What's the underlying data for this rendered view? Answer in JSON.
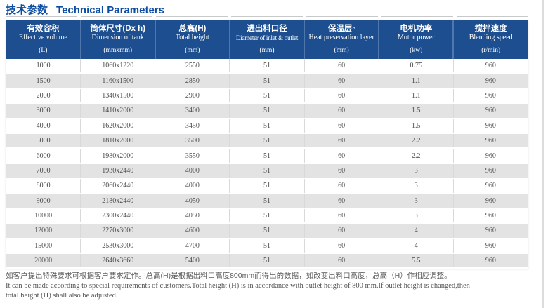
{
  "page": {
    "title_cn": "技术参数",
    "title_en": "Technical Parameters"
  },
  "colors": {
    "title_blue": "#0d4da1",
    "header_bg": "#1d4e8f",
    "header_divider": "#4f77ae",
    "row_stripe": "#e3e3e4",
    "body_text": "#4a4a4a",
    "note_text": "#5c5c5c",
    "table_border": "#c9c9c9"
  },
  "table": {
    "columns": [
      {
        "cn": "有效容积",
        "en": "Effective volume",
        "unit": "(L)"
      },
      {
        "cn": "筒体尺寸(Dx h)",
        "en": "Dimension of tank",
        "unit": "(mmxmm)"
      },
      {
        "cn": "总高(H)",
        "en": "Total height",
        "unit": "(mm)"
      },
      {
        "cn": "进出料口径",
        "en": "Diameter of inlet & outlet",
        "unit": "(mm)"
      },
      {
        "cn": "保温层▫",
        "en": "Heat preservation layer",
        "unit": "(mm)"
      },
      {
        "cn": "电机功率",
        "en": "Motor power",
        "unit": "(kw)"
      },
      {
        "cn": "搅拌速度",
        "en": "Blending speed",
        "unit": "(r/min)"
      }
    ],
    "rows": [
      [
        "1000",
        "1060x1220",
        "2550",
        "51",
        "60",
        "0.75",
        "960"
      ],
      [
        "1500",
        "1160x1500",
        "2850",
        "51",
        "60",
        "1.1",
        "960"
      ],
      [
        "2000",
        "1340x1500",
        "2900",
        "51",
        "60",
        "1.1",
        "960"
      ],
      [
        "3000",
        "1410x2000",
        "3400",
        "51",
        "60",
        "1.5",
        "960"
      ],
      [
        "4000",
        "1620x2000",
        "3450",
        "51",
        "60",
        "1.5",
        "960"
      ],
      [
        "5000",
        "1810x2000",
        "3500",
        "51",
        "60",
        "2.2",
        "960"
      ],
      [
        "6000",
        "1980x2000",
        "3550",
        "51",
        "60",
        "2.2",
        "960"
      ],
      [
        "7000",
        "1930x2440",
        "4000",
        "51",
        "60",
        "3",
        "960"
      ],
      [
        "8000",
        "2060x2440",
        "4000",
        "51",
        "60",
        "3",
        "960"
      ],
      [
        "9000",
        "2180x2440",
        "4050",
        "51",
        "60",
        "3",
        "960"
      ],
      [
        "10000",
        "2300x2440",
        "4050",
        "51",
        "60",
        "3",
        "960"
      ],
      [
        "12000",
        "2270x3000",
        "4600",
        "51",
        "60",
        "4",
        "960"
      ],
      [
        "15000",
        "2530x3000",
        "4700",
        "51",
        "60",
        "4",
        "960"
      ],
      [
        "20000",
        "2640x3660",
        "5400",
        "51",
        "60",
        "5.5",
        "960"
      ]
    ]
  },
  "notes": {
    "cn": "如客户提出特殊要求可根据客户要求定作。总高(H)是根据出料口高度800mm而得出的数据，如改变出料口高度，总高（H）作相应调整。",
    "en_line1": "It can be made according to special requirements of customers.Total height (H) is in accordance with outlet height of 800 mm.If outlet height is changed,then",
    "en_line2": "total height (H) shall also be adjusted."
  }
}
